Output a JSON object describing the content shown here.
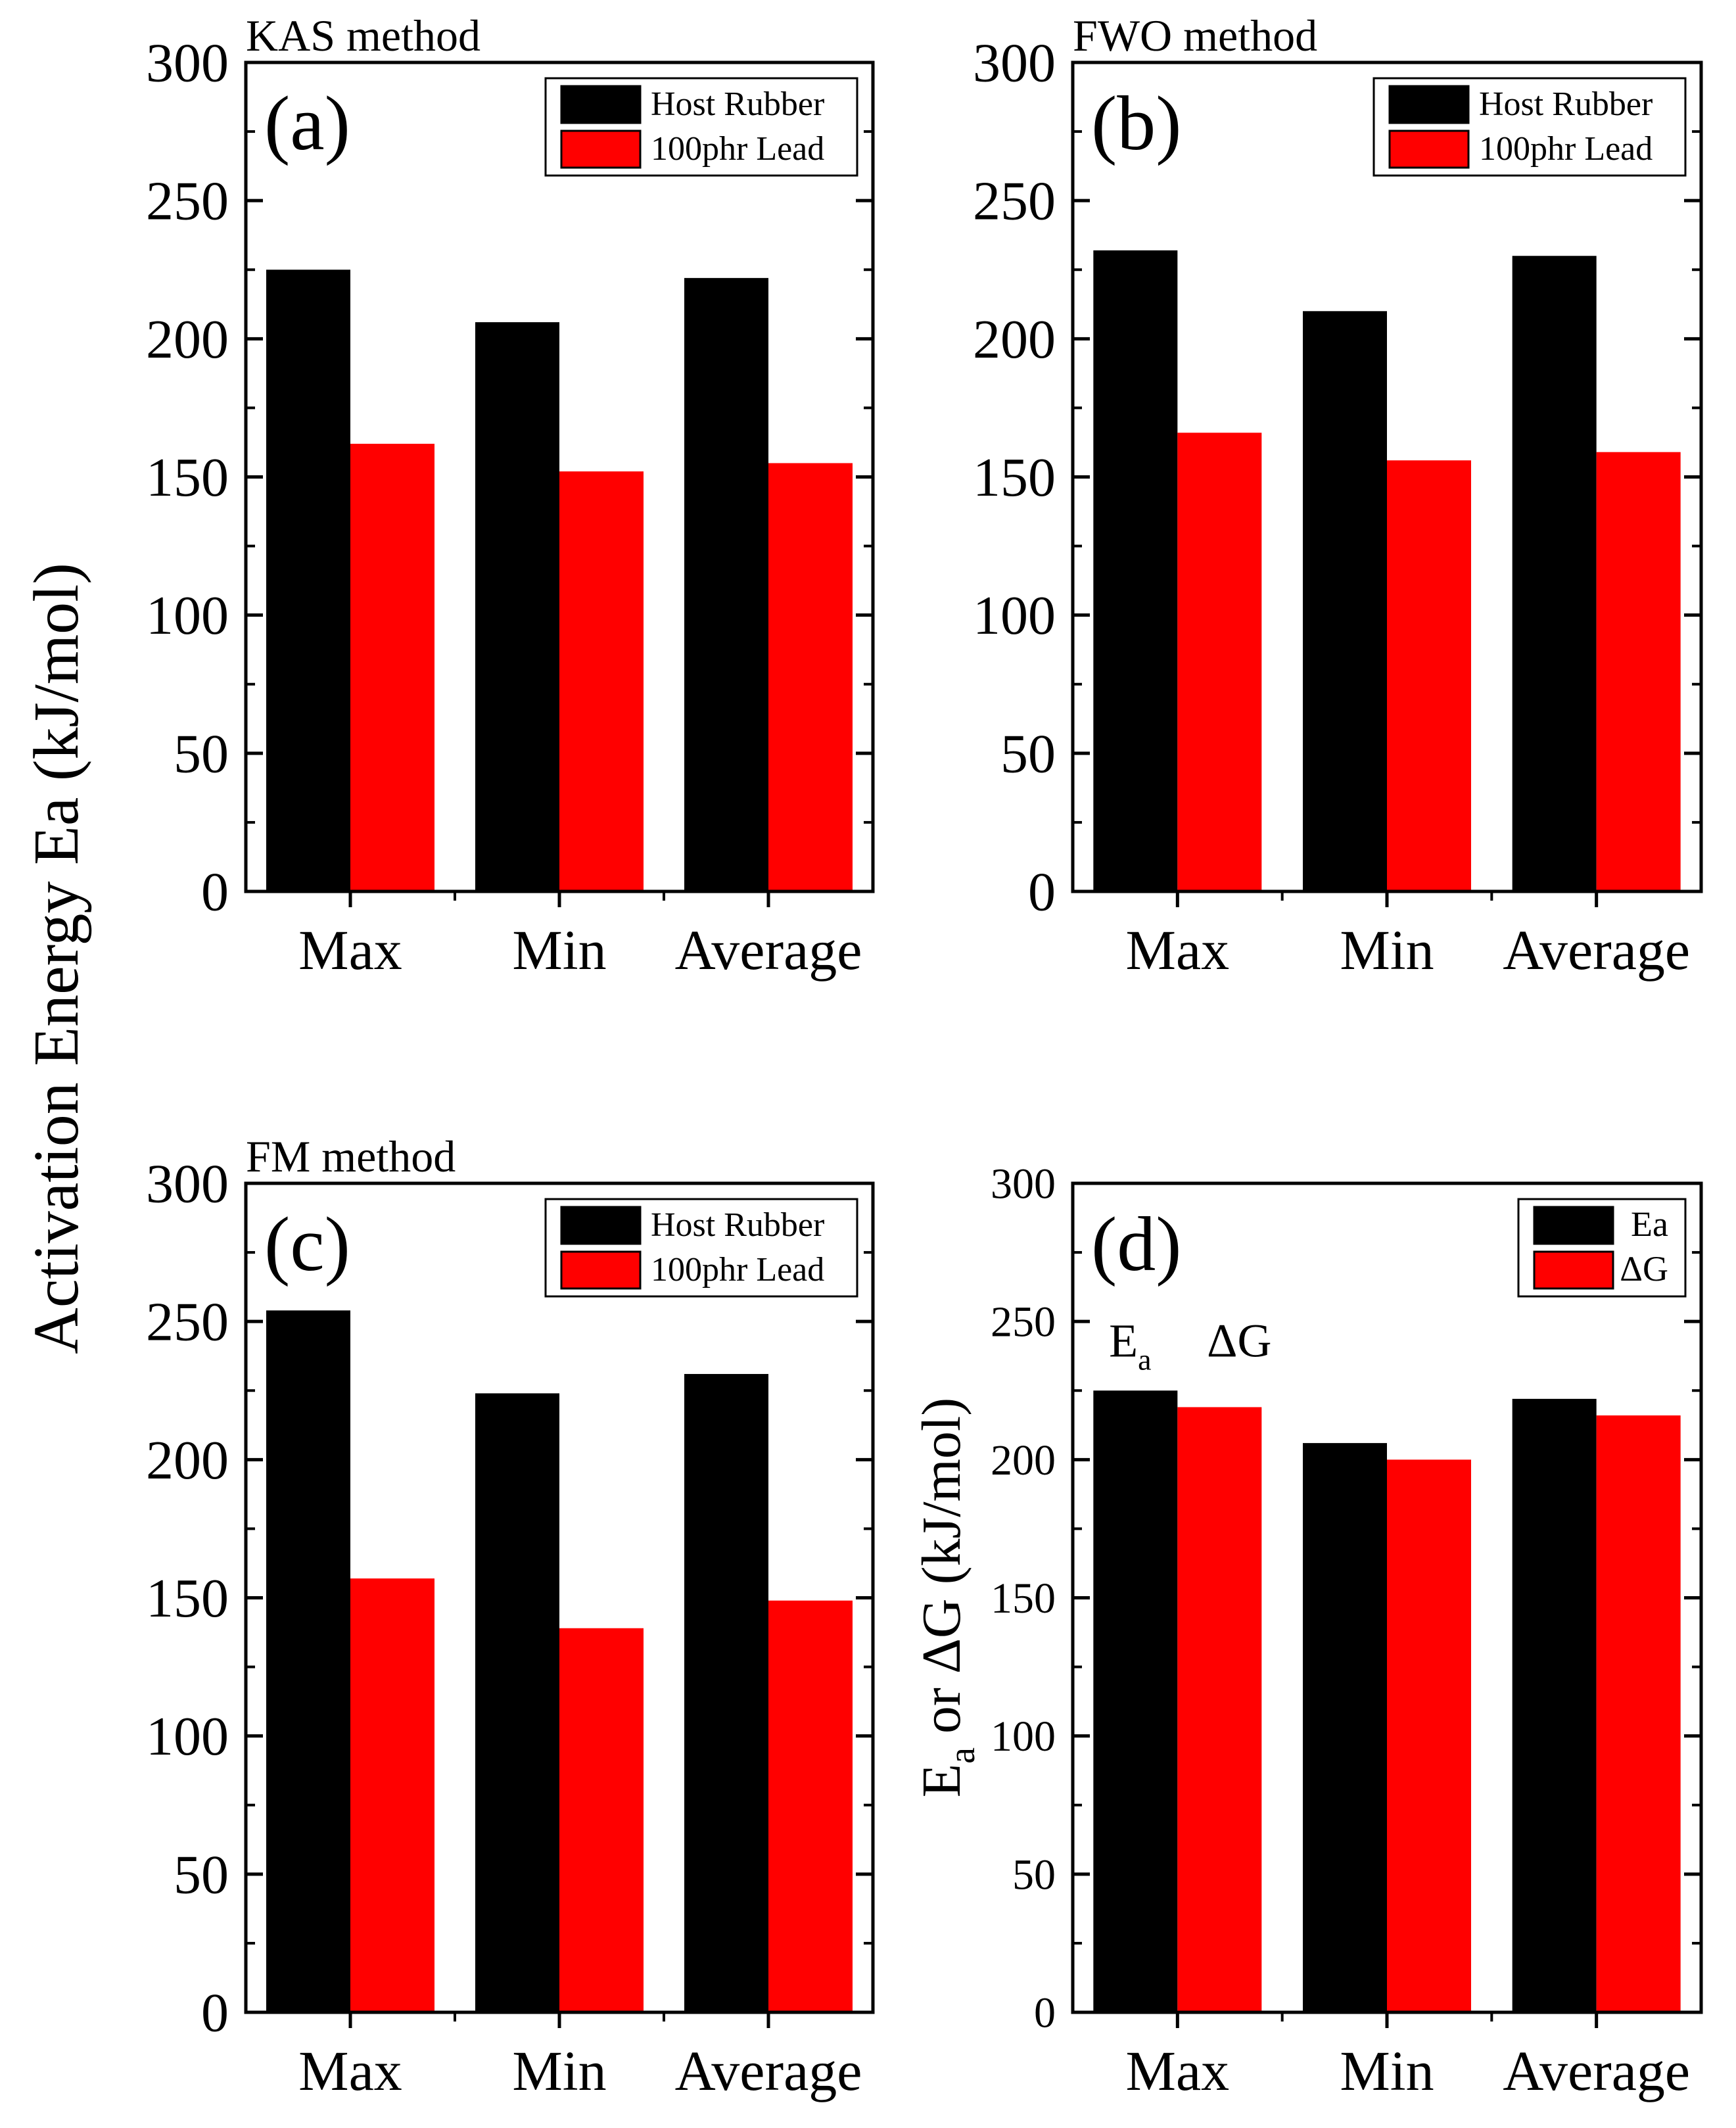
{
  "figure": {
    "shared_ylabel": "Activation Energy Ea (kJ/mol)"
  },
  "colors": {
    "series_a": "#000000",
    "series_b": "#ff0000",
    "axis": "#000000",
    "background": "#ffffff"
  },
  "chart_data": [
    {
      "id": "a",
      "type": "bar",
      "title": "KAS method",
      "panel_label": "(a)",
      "categories": [
        "Max",
        "Min",
        "Average"
      ],
      "series": [
        {
          "name": "Host Rubber",
          "values": [
            225,
            206,
            222
          ]
        },
        {
          "name": "100phr Lead",
          "values": [
            162,
            152,
            155
          ]
        }
      ],
      "ylim": [
        0,
        300
      ],
      "yticks": [
        "0",
        "50",
        "100",
        "150",
        "200",
        "250",
        "300"
      ],
      "xlabel": "",
      "ylabel": "",
      "legend": "top-right",
      "grid": false
    },
    {
      "id": "b",
      "type": "bar",
      "title": "FWO method",
      "panel_label": "(b)",
      "categories": [
        "Max",
        "Min",
        "Average"
      ],
      "series": [
        {
          "name": "Host Rubber",
          "values": [
            232,
            210,
            230
          ]
        },
        {
          "name": "100phr Lead",
          "values": [
            166,
            156,
            159
          ]
        }
      ],
      "ylim": [
        0,
        300
      ],
      "yticks": [
        "0",
        "50",
        "100",
        "150",
        "200",
        "250",
        "300"
      ],
      "xlabel": "",
      "ylabel": "",
      "legend": "top-right",
      "grid": false
    },
    {
      "id": "c",
      "type": "bar",
      "title": "FM method",
      "panel_label": "(c)",
      "categories": [
        "Max",
        "Min",
        "Average"
      ],
      "series": [
        {
          "name": "Host Rubber",
          "values": [
            254,
            224,
            231
          ]
        },
        {
          "name": "100phr Lead",
          "values": [
            157,
            139,
            149
          ]
        }
      ],
      "ylim": [
        0,
        300
      ],
      "yticks": [
        "0",
        "50",
        "100",
        "150",
        "200",
        "250",
        "300"
      ],
      "xlabel": "",
      "ylabel": "",
      "legend": "top-right",
      "grid": false
    },
    {
      "id": "d",
      "type": "bar",
      "title": "",
      "panel_label": "(d)",
      "categories": [
        "Max",
        "Min",
        "Average"
      ],
      "series": [
        {
          "name": "Ea",
          "values": [
            225,
            206,
            222
          ]
        },
        {
          "name": "ΔG",
          "values": [
            219,
            200,
            216
          ]
        }
      ],
      "ylim": [
        0,
        300
      ],
      "yticks": [
        "0",
        "50",
        "100",
        "150",
        "200",
        "250",
        "300"
      ],
      "xlabel": "",
      "ylabel": "Ea or ΔG (kJ/mol)",
      "ylabel_parts": {
        "main": "E",
        "sub": "a",
        "rest": " or ΔG (kJ/mol)"
      },
      "legend": "top-right",
      "grid": false,
      "annotations": [
        {
          "main": "E",
          "sub": "a"
        },
        {
          "main": "ΔG",
          "sub": ""
        }
      ]
    }
  ]
}
